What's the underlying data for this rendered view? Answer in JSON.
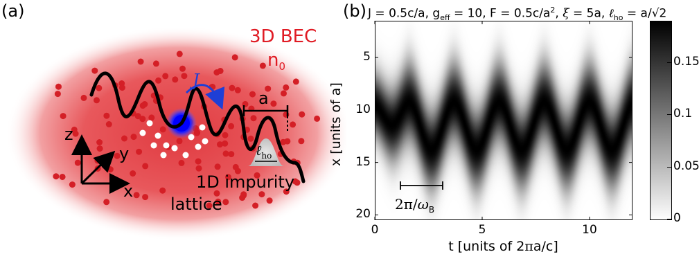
{
  "panel_a": {
    "label": "(a)",
    "bec_title": "3D BEC",
    "density_label": "n",
    "density_sub": "0",
    "hopping_label": "J",
    "spacing_label": "a",
    "oscillator_label": "ℓ",
    "oscillator_sub": "ho",
    "axis_x": "x",
    "axis_y": "y",
    "axis_z": "z",
    "impurity_line1": "1D impurity",
    "impurity_line2": "lattice",
    "colors": {
      "bec_glow": "#e8464c",
      "atom": "#d41f26",
      "impurity": "#1010ff",
      "hopping_arrow": "#1f3fd6",
      "hole": "#ffffff"
    }
  },
  "panel_b": {
    "label": "(b)",
    "title": "J = 0.5c/a, g_eff = 10, F = 0.5c/a², ξ = 5a, ℓ_ho = a/√2",
    "period_label": "2π/ω_B",
    "colorbar": {
      "ticks": [
        {
          "value": 0.15,
          "label": "0.15"
        },
        {
          "value": 0.1,
          "label": "0.1"
        },
        {
          "value": 0.05,
          "label": "0.05"
        },
        {
          "value": 0,
          "label": "0"
        }
      ],
      "max": 0.19,
      "colormap": "gray_r"
    }
  },
  "chart_data": {
    "type": "heatmap",
    "title": "J = 0.5c/a, g_eff = 10, F = 0.5c/a², ξ = 5a, ℓ_ho = a/√2",
    "xlabel": "t [units of 2πa/c]",
    "ylabel": "x [units of a]",
    "xlim": [
      0,
      12
    ],
    "ylim": [
      20.5,
      1.5
    ],
    "x_ticks": [
      0,
      5,
      10
    ],
    "y_ticks": [
      5,
      10,
      15,
      20
    ],
    "y_inverted": true,
    "density_model": {
      "center_mean": 11.5,
      "center_start": 9.5,
      "oscillation_amplitude": 2.2,
      "oscillation_period": 2.1,
      "width": 2.6,
      "peak": 0.19
    },
    "colorbar_range": [
      0,
      0.19
    ]
  }
}
